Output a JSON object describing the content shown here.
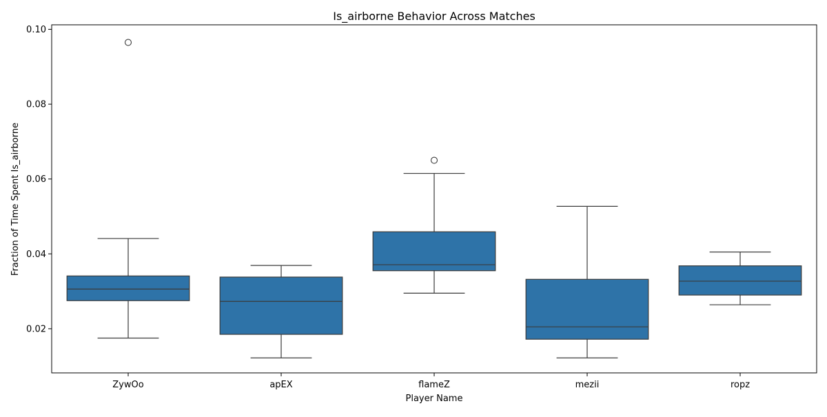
{
  "chart_data": {
    "type": "box",
    "title": "Is_airborne Behavior Across Matches",
    "xlabel": "Player Name",
    "ylabel": "Fraction of Time Spent Is_airborne",
    "ylim": [
      0.0082,
      0.1012
    ],
    "yticks": [
      0.02,
      0.04,
      0.06,
      0.08,
      0.1
    ],
    "ytick_labels": [
      "0.02",
      "0.04",
      "0.06",
      "0.08",
      "0.10"
    ],
    "box_color": "#2e73a8",
    "line_color": "#3a3a3a",
    "grid": false,
    "categories": [
      "ZywOo",
      "apEX",
      "flameZ",
      "mezii",
      "ropz"
    ],
    "boxes": [
      {
        "name": "ZywOo",
        "whisker_low": 0.0175,
        "q1": 0.0275,
        "median": 0.0306,
        "q3": 0.0341,
        "whisker_high": 0.0441,
        "outliers": [
          0.0965
        ]
      },
      {
        "name": "apEX",
        "whisker_low": 0.0122,
        "q1": 0.0185,
        "median": 0.0273,
        "q3": 0.0338,
        "whisker_high": 0.0369,
        "outliers": []
      },
      {
        "name": "flameZ",
        "whisker_low": 0.0295,
        "q1": 0.0355,
        "median": 0.0371,
        "q3": 0.0459,
        "whisker_high": 0.0615,
        "outliers": [
          0.065
        ]
      },
      {
        "name": "mezii",
        "whisker_low": 0.0122,
        "q1": 0.0172,
        "median": 0.0205,
        "q3": 0.0332,
        "whisker_high": 0.0527,
        "outliers": []
      },
      {
        "name": "ropz",
        "whisker_low": 0.0264,
        "q1": 0.029,
        "median": 0.0327,
        "q3": 0.0368,
        "whisker_high": 0.0405,
        "outliers": []
      }
    ]
  }
}
